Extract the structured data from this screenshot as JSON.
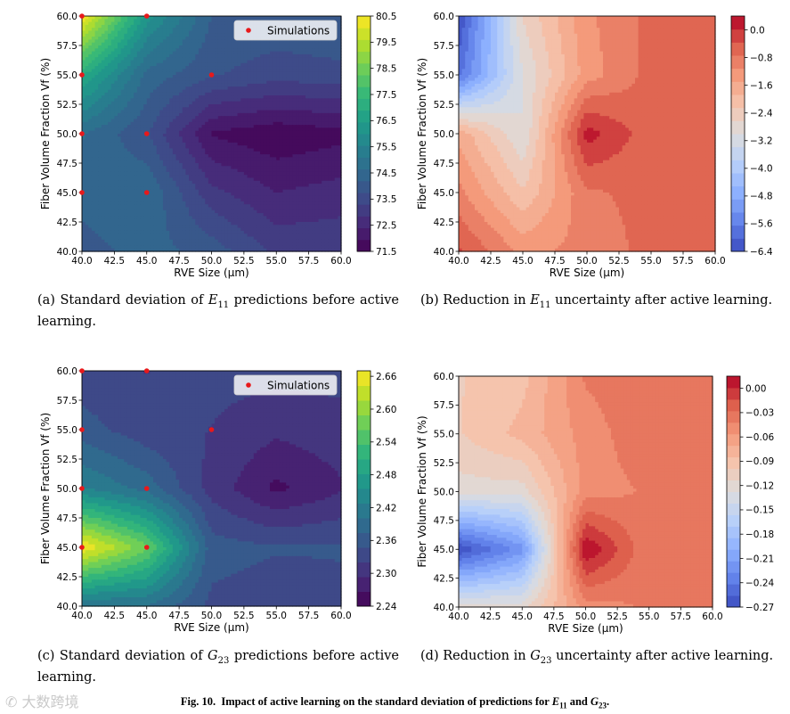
{
  "chart_data": [
    {
      "id": "a",
      "type": "heatmap",
      "subtype": "filled-contour",
      "colormap": "viridis",
      "xlabel": "RVE Size (µm)",
      "ylabel": "Fiber Volume Fraction Vf (%)",
      "xlim": [
        40,
        60
      ],
      "ylim": [
        40,
        60
      ],
      "x_ticks": [
        "40.0",
        "42.5",
        "45.0",
        "47.5",
        "50.0",
        "52.5",
        "55.0",
        "57.5",
        "60.0"
      ],
      "y_ticks": [
        "40.0",
        "42.5",
        "45.0",
        "47.5",
        "50.0",
        "52.5",
        "55.0",
        "57.5",
        "60.0"
      ],
      "colorbar_ticks": [
        "71.5",
        "72.5",
        "73.5",
        "74.5",
        "75.5",
        "76.5",
        "77.5",
        "78.5",
        "79.5",
        "80.5"
      ],
      "clim": [
        71.5,
        80.5
      ],
      "legend": {
        "label": "Simulations",
        "position": "top-right"
      },
      "grid_x": [
        40,
        45,
        50,
        55,
        60
      ],
      "grid_y": [
        40,
        45,
        50,
        55,
        60
      ],
      "z": [
        [
          74.0,
          74.4,
          74.0,
          73.2,
          73.2
        ],
        [
          74.4,
          74.6,
          73.0,
          72.4,
          72.6
        ],
        [
          74.7,
          73.8,
          71.9,
          71.6,
          71.8
        ],
        [
          77.0,
          74.5,
          73.8,
          73.5,
          73.6
        ],
        [
          80.5,
          76.2,
          74.2,
          74.1,
          74.2
        ]
      ],
      "simulations": [
        [
          40,
          45
        ],
        [
          40,
          50
        ],
        [
          40,
          55
        ],
        [
          40,
          60
        ],
        [
          45,
          45
        ],
        [
          45,
          50
        ],
        [
          45,
          60
        ],
        [
          50,
          55
        ]
      ],
      "caption": "(a) Standard deviation of E11 predictions before active learning."
    },
    {
      "id": "b",
      "type": "heatmap",
      "subtype": "filled-contour",
      "colormap": "coolwarm",
      "xlabel": "RVE Size (µm)",
      "ylabel": "Fiber Volume Fraction Vf (%)",
      "xlim": [
        40,
        60
      ],
      "ylim": [
        40,
        60
      ],
      "x_ticks": [
        "40.0",
        "42.5",
        "45.0",
        "47.5",
        "50.0",
        "52.5",
        "55.0",
        "57.5",
        "60.0"
      ],
      "y_ticks": [
        "40.0",
        "42.5",
        "45.0",
        "47.5",
        "50.0",
        "52.5",
        "55.0",
        "57.5",
        "60.0"
      ],
      "colorbar_ticks": [
        "0.0",
        "−0.8",
        "−1.6",
        "−2.4",
        "−3.2",
        "−4.0",
        "−4.8",
        "−5.6",
        "−6.4"
      ],
      "clim": [
        -6.4,
        0.4
      ],
      "grid_x": [
        40,
        45,
        50,
        55,
        60
      ],
      "grid_y": [
        40,
        45,
        50,
        55,
        60
      ],
      "z": [
        [
          -0.3,
          -1.2,
          -1.0,
          -0.6,
          -0.6
        ],
        [
          -1.0,
          -2.2,
          -0.8,
          -0.6,
          -0.6
        ],
        [
          -1.6,
          -3.0,
          0.2,
          -0.6,
          -0.6
        ],
        [
          -5.8,
          -3.0,
          -1.3,
          -0.6,
          -0.6
        ],
        [
          -6.4,
          -2.6,
          -1.2,
          -0.6,
          -0.6
        ]
      ],
      "caption": "(b) Reduction in E11 uncertainty after active learning."
    },
    {
      "id": "c",
      "type": "heatmap",
      "subtype": "filled-contour",
      "colormap": "viridis",
      "xlabel": "RVE Size (µm)",
      "ylabel": "Fiber Volume Fraction Vf (%)",
      "xlim": [
        40,
        60
      ],
      "ylim": [
        40,
        60
      ],
      "x_ticks": [
        "40.0",
        "42.5",
        "45.0",
        "47.5",
        "50.0",
        "52.5",
        "55.0",
        "57.5",
        "60.0"
      ],
      "y_ticks": [
        "40.0",
        "42.5",
        "45.0",
        "47.5",
        "50.0",
        "52.5",
        "55.0",
        "57.5",
        "60.0"
      ],
      "colorbar_ticks": [
        "2.24",
        "2.30",
        "2.36",
        "2.42",
        "2.48",
        "2.54",
        "2.60",
        "2.66"
      ],
      "clim": [
        2.24,
        2.67
      ],
      "legend": {
        "label": "Simulations",
        "position": "top-right"
      },
      "grid_x": [
        40,
        45,
        50,
        55,
        60
      ],
      "grid_y": [
        40,
        45,
        50,
        55,
        60
      ],
      "z": [
        [
          2.4,
          2.4,
          2.34,
          2.33,
          2.34
        ],
        [
          2.67,
          2.57,
          2.36,
          2.35,
          2.35
        ],
        [
          2.43,
          2.39,
          2.31,
          2.26,
          2.29
        ],
        [
          2.36,
          2.33,
          2.32,
          2.3,
          2.31
        ],
        [
          2.33,
          2.32,
          2.33,
          2.33,
          2.33
        ]
      ],
      "simulations": [
        [
          40,
          45
        ],
        [
          40,
          50
        ],
        [
          40,
          55
        ],
        [
          40,
          60
        ],
        [
          45,
          45
        ],
        [
          45,
          50
        ],
        [
          45,
          60
        ],
        [
          50,
          55
        ]
      ],
      "caption": "(c) Standard deviation of G23 predictions before active learning."
    },
    {
      "id": "d",
      "type": "heatmap",
      "subtype": "filled-contour",
      "colormap": "coolwarm",
      "xlabel": "RVE Size (µm)",
      "ylabel": "Fiber Volume Fraction Vf (%)",
      "xlim": [
        40,
        60
      ],
      "ylim": [
        40,
        60
      ],
      "x_ticks": [
        "40.0",
        "42.5",
        "45.0",
        "47.5",
        "50.0",
        "52.5",
        "55.0",
        "57.5",
        "60.0"
      ],
      "y_ticks": [
        "40.0",
        "42.5",
        "45.0",
        "47.5",
        "50.0",
        "52.5",
        "55.0",
        "57.5",
        "60.0"
      ],
      "colorbar_ticks": [
        "0.00",
        "−0.03",
        "−0.06",
        "−0.09",
        "−0.12",
        "−0.15",
        "−0.18",
        "−0.21",
        "−0.24",
        "−0.27"
      ],
      "clim": [
        -0.27,
        0.015
      ],
      "grid_x": [
        40,
        45,
        50,
        55,
        60
      ],
      "grid_y": [
        40,
        45,
        50,
        55,
        60
      ],
      "z": [
        [
          -0.12,
          -0.12,
          -0.05,
          -0.04,
          -0.04
        ],
        [
          -0.27,
          -0.22,
          0.015,
          -0.04,
          -0.04
        ],
        [
          -0.12,
          -0.12,
          -0.05,
          -0.04,
          -0.04
        ],
        [
          -0.1,
          -0.08,
          -0.05,
          -0.03,
          -0.03
        ],
        [
          -0.1,
          -0.09,
          -0.04,
          -0.03,
          -0.03
        ]
      ],
      "caption": "(d) Reduction in G23 uncertainty after active learning."
    }
  ],
  "captions": {
    "a": {
      "label": "(a) Standard deviation of ",
      "sym": "E",
      "sub": "11",
      "rest": " predictions before active learning."
    },
    "b": {
      "label": "(b) Reduction in ",
      "sym": "E",
      "sub": "11",
      "rest": " uncertainty after active learning."
    },
    "c": {
      "label": "(c) Standard deviation of ",
      "sym": "G",
      "sub": "23",
      "rest": " predictions before active learning."
    },
    "d": {
      "label": "(d) Reduction in ",
      "sym": "G",
      "sub": "23",
      "rest": " uncertainty after active learning."
    }
  },
  "figure_caption": {
    "prefix": "Fig. 10.",
    "text": "Impact of active learning on the standard deviation of predictions for",
    "sym1": "E",
    "sub1": "11",
    "and": "and",
    "sym2": "G",
    "sub2": "23",
    "end": "."
  },
  "watermark": "大数跨境",
  "colors": {
    "simulation_marker": "#e8191b",
    "axis": "#000000"
  }
}
